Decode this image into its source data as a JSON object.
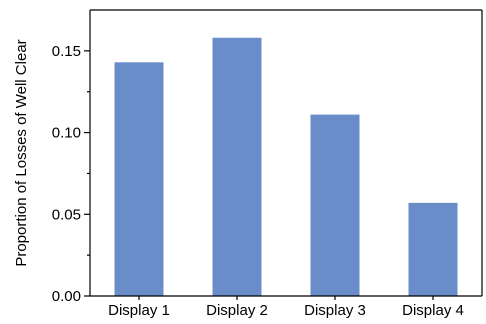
{
  "chart_data": {
    "type": "bar",
    "title": "",
    "xlabel": "",
    "ylabel": "Proportion of Losses of Well Clear",
    "categories": [
      "Display 1",
      "Display 2",
      "Display 3",
      "Display 4"
    ],
    "values": [
      0.143,
      0.158,
      0.111,
      0.057
    ],
    "ylim": [
      0,
      0.175
    ],
    "yticks": [
      0.0,
      0.05,
      0.1,
      0.15
    ],
    "ytick_labels": [
      "0.00",
      "0.05",
      "0.10",
      "0.15"
    ],
    "bar_color": "#6a8cc9",
    "grid": false,
    "legend": "none"
  }
}
